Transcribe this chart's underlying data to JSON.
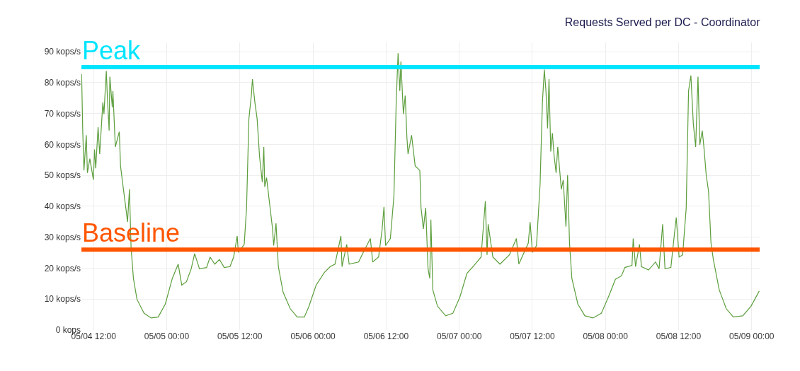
{
  "chart_data": {
    "type": "line",
    "title": "Requests Served per DC - Coordinator",
    "x": [
      "--05-04T10:02",
      "--05-04T10:13",
      "--05-04T10:25",
      "--05-04T10:48",
      "--05-04T10:59",
      "--05-04T11:23",
      "--05-04T11:58",
      "--05-04T12:09",
      "--05-04T12:21",
      "--05-04T12:44",
      "--05-04T13:00",
      "--05-04T13:31",
      "--05-04T13:42",
      "--05-04T14:05",
      "--05-04T14:17",
      "--05-04T14:33",
      "--05-04T14:40",
      "--05-04T15:04",
      "--05-04T15:10",
      "--05-04T15:34",
      "--05-04T16:13",
      "--05-04T16:25",
      "--05-04T16:48",
      "--05-04T17:23",
      "--05-04T17:34",
      "--05-04T17:53",
      "--05-04T18:09",
      "--05-04T18:32",
      "--05-04T19:07",
      "--05-04T20:17",
      "--05-04T21:26",
      "--05-04T22:36",
      "--05-04T23:46",
      "--05-05T00:55",
      "--05-05T01:53",
      "--05-05T02:28",
      "--05-05T03:14",
      "--05-05T04:01",
      "--05-05T04:35",
      "--05-05T05:22",
      "--05-05T06:32",
      "--05-05T07:07",
      "--05-05T07:53",
      "--05-05T08:39",
      "--05-05T09:26",
      "--05-05T10:23",
      "--05-05T10:59",
      "--05-05T11:34",
      "--05-05T11:45",
      "--05-05T12:43",
      "--05-05T13:06",
      "--05-05T13:29",
      "--05-05T13:53",
      "--05-05T14:04",
      "--05-05T14:28",
      "--05-05T14:50",
      "--05-05T15:14",
      "--05-05T15:41",
      "--05-05T15:56",
      "--05-05T16:05",
      "--05-05T16:23",
      "--05-05T16:47",
      "--05-05T17:22",
      "--05-05T17:33",
      "--05-05T17:56",
      "--05-05T18:19",
      "--05-05T19:06",
      "--05-05T20:16",
      "--05-05T21:25",
      "--05-05T22:35",
      "--05-05T23:21",
      "--05-06T00:31",
      "--05-06T01:52",
      "--05-06T02:50",
      "--05-06T03:37",
      "--05-06T04:35",
      "--05-06T04:46",
      "--05-06T05:32",
      "--05-06T05:56",
      "--05-06T07:29",
      "--05-06T08:15",
      "--05-06T09:25",
      "--05-06T09:48",
      "--05-06T10:46",
      "--05-06T11:20",
      "--05-06T11:39",
      "--05-06T11:55",
      "--05-06T12:42",
      "--05-06T13:17",
      "--05-06T13:40",
      "--05-06T13:58",
      "--05-06T14:15",
      "--05-06T14:26",
      "--05-06T14:50",
      "--05-06T15:08",
      "--05-06T15:25",
      "--05-06T15:36",
      "--05-06T16:11",
      "--05-06T16:46",
      "--05-06T17:32",
      "--05-06T17:44",
      "--05-06T18:07",
      "--05-06T18:30",
      "--05-06T18:53",
      "--05-06T19:10",
      "--05-06T19:21",
      "--05-06T19:40",
      "--05-06T20:26",
      "--05-06T21:47",
      "--05-06T22:57",
      "--05-07T00:07",
      "--05-07T01:16",
      "--05-07T02:26",
      "--05-07T03:35",
      "--05-07T04:17",
      "--05-07T04:34",
      "--05-07T04:45",
      "--05-07T05:31",
      "--05-07T06:41",
      "--05-07T08:14",
      "--05-07T09:23",
      "--05-07T09:47",
      "--05-07T11:20",
      "--05-07T11:38",
      "--05-07T12:01",
      "--05-07T12:41",
      "--05-07T13:16",
      "--05-07T13:39",
      "--05-07T13:58",
      "--05-07T14:14",
      "--05-07T14:30",
      "--05-07T14:44",
      "--05-07T15:01",
      "--05-07T15:17",
      "--05-07T15:35",
      "--05-07T15:54",
      "--05-07T16:10",
      "--05-07T16:45",
      "--05-07T17:04",
      "--05-07T17:31",
      "--05-07T17:47",
      "--05-07T18:06",
      "--05-07T18:29",
      "--05-07T19:28",
      "--05-07T20:37",
      "--05-07T21:58",
      "--05-07T23:19",
      "--05-08T00:29",
      "--05-08T01:38",
      "--05-08T02:37",
      "--05-08T03:11",
      "--05-08T04:21",
      "--05-08T04:33",
      "--05-08T04:56",
      "--05-08T05:35",
      "--05-08T05:54",
      "--05-08T07:04",
      "--05-08T08:13",
      "--05-08T08:48",
      "--05-08T09:23",
      "--05-08T09:46",
      "--05-08T10:44",
      "--05-08T11:19",
      "--05-08T11:37",
      "--05-08T12:05",
      "--05-08T12:40",
      "--05-08T13:15",
      "--05-08T13:38",
      "--05-08T14:01",
      "--05-08T14:25",
      "--05-08T14:48",
      "--05-08T15:11",
      "--05-08T15:29",
      "--05-08T15:53",
      "--05-08T16:09",
      "--05-08T16:32",
      "--05-08T16:55",
      "--05-08T17:19",
      "--05-08T17:42",
      "--05-08T18:40",
      "--05-08T19:49",
      "--05-08T20:59",
      "--05-08T22:32",
      "--05-08T23:53",
      "--05-09T01:14"
    ],
    "series": [
      {
        "color": "#5c9e3c",
        "values": [
          82.7,
          64.5,
          51.6,
          63,
          50.8,
          55.4,
          48.6,
          58.4,
          52.3,
          65.6,
          56.9,
          73.6,
          69.8,
          83.8,
          74.3,
          64.5,
          81.9,
          72,
          77.3,
          59.2,
          64.1,
          53.1,
          47,
          38,
          34.9,
          45.5,
          26.6,
          16.7,
          9.9,
          5.4,
          3.9,
          4.2,
          8.4,
          16.7,
          21.3,
          14.5,
          15.6,
          19.8,
          24.7,
          19.8,
          20.2,
          23.6,
          21.3,
          22.8,
          20.2,
          20.5,
          23.6,
          30.4,
          25.1,
          27.7,
          39.5,
          68.3,
          75.8,
          81.1,
          73.6,
          68.3,
          56.1,
          47.8,
          59.2,
          46.3,
          49.3,
          42.5,
          32.7,
          27.3,
          34.5,
          20.5,
          12.2,
          6.9,
          4.2,
          4.2,
          7.7,
          14.5,
          18.6,
          20.5,
          21.3,
          30.4,
          20.5,
          27.7,
          21.3,
          22,
          25.1,
          29.6,
          22,
          23.6,
          32.3,
          39.8,
          27.3,
          29.6,
          43.3,
          74.3,
          89.5,
          77.3,
          86.8,
          69.8,
          75.8,
          62.2,
          56.9,
          63,
          53.1,
          51.6,
          39.5,
          32.7,
          39.5,
          19.8,
          16.7,
          35.7,
          13,
          7.7,
          4.6,
          5.4,
          10.7,
          18.3,
          20.9,
          23.6,
          41.7,
          24.3,
          34.2,
          23.6,
          21.3,
          24.3,
          29.6,
          21.3,
          28.1,
          34.9,
          25.1,
          27.3,
          47,
          73.6,
          84.2,
          77.3,
          65.2,
          81.1,
          57.7,
          63.7,
          56.1,
          50.8,
          59.2,
          45.5,
          48.5,
          33.4,
          50.1,
          28.1,
          16.7,
          8.4,
          4.6,
          3.9,
          5.4,
          10.7,
          16.4,
          17.5,
          20.2,
          20.9,
          29.6,
          20.5,
          27.7,
          20.5,
          19.4,
          22,
          19.8,
          34.2,
          19.8,
          20.2,
          31.1,
          36.4,
          23.6,
          24.3,
          39.5,
          77.3,
          82.3,
          66.7,
          59.2,
          81.9,
          59.9,
          64.5,
          59.2,
          50.1,
          44.8,
          28.1,
          22.8,
          13,
          6.9,
          4.2,
          4.6,
          7.7,
          12.6
        ]
      }
    ],
    "xlim": [
      "--05-04T10:00",
      "--05-09T01:18"
    ],
    "xticks": [
      {
        "value": "--05-04T12:00",
        "label": "05/04 12:00"
      },
      {
        "value": "--05-05T00:00",
        "label": "05/05 00:00"
      },
      {
        "value": "--05-05T12:00",
        "label": "05/05 12:00"
      },
      {
        "value": "--05-06T00:00",
        "label": "05/06 00:00"
      },
      {
        "value": "--05-06T12:00",
        "label": "05/06 12:00"
      },
      {
        "value": "--05-07T00:00",
        "label": "05/07 00:00"
      },
      {
        "value": "--05-07T12:00",
        "label": "05/07 12:00"
      },
      {
        "value": "--05-08T00:00",
        "label": "05/08 00:00"
      },
      {
        "value": "--05-08T12:00",
        "label": "05/08 12:00"
      },
      {
        "value": "--05-09T00:00",
        "label": "05/09 00:00"
      }
    ],
    "ylim": [
      0,
      93
    ],
    "yticks": [
      {
        "value": 0,
        "label": "0 kops"
      },
      {
        "value": 10,
        "label": "10 kops/s"
      },
      {
        "value": 20,
        "label": "20 kops/s"
      },
      {
        "value": 30,
        "label": "30 kops/s"
      },
      {
        "value": 40,
        "label": "40 kops/s"
      },
      {
        "value": 50,
        "label": "50 kops/s"
      },
      {
        "value": 60,
        "label": "60 kops/s"
      },
      {
        "value": 70,
        "label": "70 kops/s"
      },
      {
        "value": 80,
        "label": "80 kops/s"
      },
      {
        "value": 90,
        "label": "90 kops/s"
      }
    ],
    "ref_lines": [
      {
        "axis": "y",
        "value": 85,
        "label": "Peak",
        "color": "#00e5ff"
      },
      {
        "axis": "y",
        "value": 26,
        "label": "Baseline",
        "color": "#ff5500"
      }
    ],
    "grid": true,
    "legend": false,
    "marker": "none",
    "line_style": "solid"
  }
}
